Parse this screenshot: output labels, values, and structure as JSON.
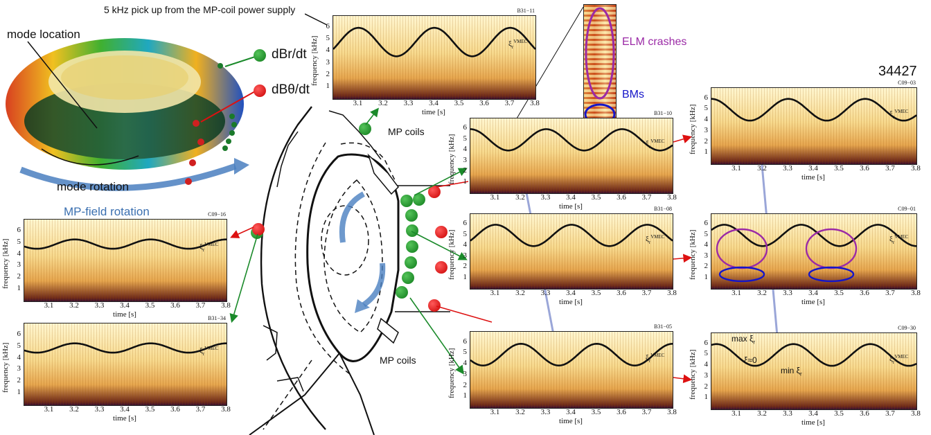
{
  "figure": {
    "shot_number": "34427",
    "pickup_note": "5 kHz pick up from the MP-coil power supply",
    "torus_labels": {
      "mode_location": "mode location",
      "mode_rotation": "mode rotation",
      "mp_field_rotation": "MP-field rotation"
    },
    "legend": {
      "radial": "dBr/dt",
      "poloidal": "dBθ/dt",
      "radial_color": "#1a8a2a",
      "poloidal_color": "#dd1111"
    },
    "coil_labels": [
      "MP coils",
      "MP coils"
    ],
    "zoom_labels": {
      "elm": "ELM crashes",
      "bm": "BMs",
      "elm_color": "#9b2aa6",
      "bm_color": "#1515c8"
    },
    "annotations": {
      "max": "max ξ",
      "zero": "ξ≈0",
      "min": "min ξ",
      "sub": "r"
    }
  },
  "axes": {
    "ylabel": "frequency [kHz]",
    "xlabel": "time [s]",
    "yticks": [
      "1",
      "2",
      "3",
      "4",
      "5",
      "6"
    ],
    "xticks": [
      "3.1",
      "3.2",
      "3.3",
      "3.4",
      "3.5",
      "3.6",
      "3.7",
      "3.8"
    ],
    "curve_label": "ξ",
    "curve_sub": "r",
    "curve_sup": "VMEC"
  },
  "chart_data": [
    {
      "type": "heatmap",
      "id": "B31−11",
      "x_range": [
        3.0,
        3.8
      ],
      "y_range": [
        0,
        7
      ],
      "curve": {
        "mean_khz": 4.8,
        "amp_khz": 1.2,
        "period_s": 0.3,
        "peak_s": 3.1
      }
    },
    {
      "type": "heatmap",
      "id": "B31−10",
      "x_range": [
        3.0,
        3.8
      ],
      "y_range": [
        0,
        7
      ],
      "curve": {
        "mean_khz": 5.0,
        "amp_khz": 1.0,
        "period_s": 0.3,
        "peak_s": 3.0
      }
    },
    {
      "type": "heatmap",
      "id": "B31−08",
      "x_range": [
        3.0,
        3.8
      ],
      "y_range": [
        0,
        7
      ],
      "curve": {
        "mean_khz": 5.0,
        "amp_khz": 1.0,
        "period_s": 0.3,
        "peak_s": 3.1
      }
    },
    {
      "type": "heatmap",
      "id": "B31−05",
      "x_range": [
        3.0,
        3.8
      ],
      "y_range": [
        0,
        7
      ],
      "curve": {
        "mean_khz": 4.9,
        "amp_khz": 1.0,
        "period_s": 0.3,
        "peak_s": 3.2
      }
    },
    {
      "type": "heatmap",
      "id": "C09−03",
      "x_range": [
        3.0,
        3.8
      ],
      "y_range": [
        0,
        7
      ],
      "curve": {
        "mean_khz": 5.0,
        "amp_khz": 1.0,
        "period_s": 0.3,
        "peak_s": 3.0
      }
    },
    {
      "type": "heatmap",
      "id": "C09−01",
      "x_range": [
        3.0,
        3.8
      ],
      "y_range": [
        0,
        7
      ],
      "curve": {
        "mean_khz": 5.0,
        "amp_khz": 1.0,
        "period_s": 0.3,
        "peak_s": 3.05
      }
    },
    {
      "type": "heatmap",
      "id": "C09−30",
      "x_range": [
        3.0,
        3.8
      ],
      "y_range": [
        0,
        7
      ],
      "curve": {
        "mean_khz": 5.0,
        "amp_khz": 1.0,
        "period_s": 0.3,
        "peak_s": 3.32
      }
    },
    {
      "type": "heatmap",
      "id": "C09−16",
      "x_range": [
        3.0,
        3.8
      ],
      "y_range": [
        0,
        7
      ],
      "curve": {
        "mean_khz": 4.9,
        "amp_khz": 0.4,
        "period_s": 0.3,
        "peak_s": 3.2
      }
    },
    {
      "type": "heatmap",
      "id": "B31−34",
      "x_range": [
        3.0,
        3.8
      ],
      "y_range": [
        0,
        7
      ],
      "curve": {
        "mean_khz": 4.9,
        "amp_khz": 0.4,
        "period_s": 0.3,
        "peak_s": 3.2
      }
    }
  ]
}
